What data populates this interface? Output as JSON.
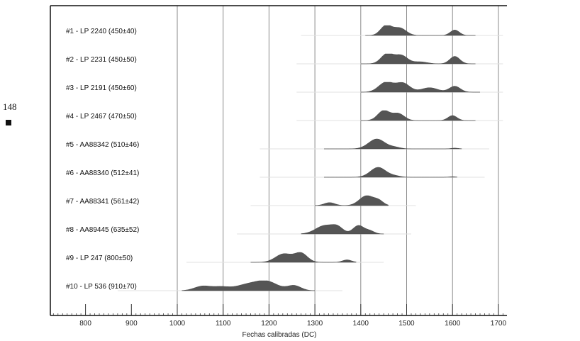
{
  "page": {
    "number": "148"
  },
  "chart_data": {
    "type": "area",
    "xlabel": "Fechas calibradas (DC)",
    "xlim": [
      730,
      1710
    ],
    "xticks": [
      800,
      900,
      1000,
      1100,
      1200,
      1300,
      1400,
      1500,
      1600,
      1700
    ],
    "grid": "vertical",
    "series": [
      {
        "label": "#1 - LP 2240 (450±40)",
        "range": [
          1410,
          1650
        ],
        "peaks": [
          [
            1455,
            1.0,
            12
          ],
          [
            1485,
            0.75,
            14
          ],
          [
            1605,
            0.55,
            10
          ]
        ]
      },
      {
        "label": "#2 - LP 2231 (450±50)",
        "range": [
          1400,
          1650
        ],
        "peaks": [
          [
            1457,
            1.0,
            13
          ],
          [
            1488,
            0.85,
            14
          ],
          [
            1530,
            0.2,
            15
          ],
          [
            1605,
            0.75,
            11
          ]
        ]
      },
      {
        "label": "#3 - LP 2191 (450±60)",
        "range": [
          1400,
          1660
        ],
        "peaks": [
          [
            1455,
            1.0,
            16
          ],
          [
            1492,
            0.9,
            15
          ],
          [
            1550,
            0.45,
            18
          ],
          [
            1605,
            0.6,
            12
          ]
        ]
      },
      {
        "label": "#4 - LP 2467 (470±50)",
        "range": [
          1400,
          1650
        ],
        "peaks": [
          [
            1450,
            1.0,
            13
          ],
          [
            1482,
            0.7,
            13
          ],
          [
            1600,
            0.5,
            10
          ]
        ]
      },
      {
        "label": "#5 - AA88342 (510±46)",
        "range": [
          1320,
          1620
        ],
        "peaks": [
          [
            1435,
            1.0,
            18
          ],
          [
            1475,
            0.15,
            12
          ],
          [
            1605,
            0.08,
            8
          ]
        ]
      },
      {
        "label": "#6 - AA88340 (512±41)",
        "range": [
          1320,
          1610
        ],
        "peaks": [
          [
            1438,
            1.0,
            17
          ],
          [
            1475,
            0.12,
            12
          ],
          [
            1600,
            0.05,
            8
          ]
        ]
      },
      {
        "label": "#7 - AA88341 (561±42)",
        "range": [
          1300,
          1460
        ],
        "peaks": [
          [
            1332,
            0.3,
            12
          ],
          [
            1413,
            1.0,
            16
          ],
          [
            1440,
            0.4,
            10
          ]
        ]
      },
      {
        "label": "#8 - AA89445 (635±52)",
        "range": [
          1270,
          1450
        ],
        "peaks": [
          [
            1322,
            0.85,
            20
          ],
          [
            1350,
            0.55,
            12
          ],
          [
            1395,
            0.85,
            12
          ],
          [
            1420,
            0.3,
            10
          ]
        ]
      },
      {
        "label": "#9 - LP 247 (800±50)",
        "range": [
          1160,
          1390
        ],
        "peaks": [
          [
            1232,
            0.85,
            18
          ],
          [
            1270,
            0.9,
            14
          ],
          [
            1370,
            0.25,
            10
          ]
        ]
      },
      {
        "label": "#10 - LP 536 (910±70)",
        "range": [
          1010,
          1300
        ],
        "peaks": [
          [
            1055,
            0.45,
            18
          ],
          [
            1095,
            0.35,
            18
          ],
          [
            1150,
            0.55,
            25
          ],
          [
            1195,
            0.9,
            24
          ],
          [
            1255,
            0.5,
            15
          ]
        ]
      }
    ]
  }
}
